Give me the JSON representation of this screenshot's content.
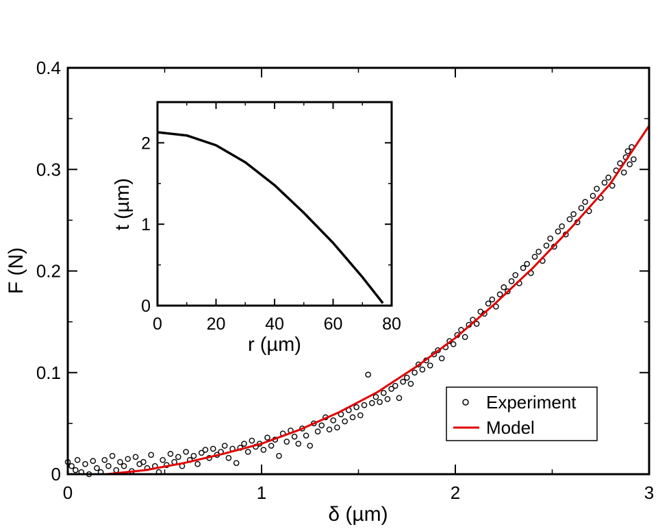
{
  "chart_data": [
    {
      "type": "scatter",
      "role": "main",
      "xlabel": "δ (µm)",
      "ylabel": "F (N)",
      "xlim": [
        0,
        3
      ],
      "ylim": [
        0,
        0.4
      ],
      "x_ticks": [
        0,
        1,
        2,
        3
      ],
      "x_tick_labels": [
        "0",
        "1",
        "2",
        "3"
      ],
      "y_ticks": [
        0,
        0.1,
        0.2,
        0.3,
        0.4
      ],
      "y_tick_labels": [
        "0",
        "0.1",
        "0.2",
        "0.3",
        "0.4"
      ],
      "legend": {
        "position": "bottom-right",
        "entries": [
          {
            "label": "Experiment",
            "marker": "open-circle",
            "color": "#000000"
          },
          {
            "label": "Model",
            "marker": "line",
            "color": "#e00000"
          }
        ]
      },
      "series": [
        {
          "name": "Experiment",
          "kind": "scatter",
          "color": "#000000",
          "points": [
            [
              0.0,
              0.012
            ],
            [
              0.02,
              0.008
            ],
            [
              0.04,
              0.004
            ],
            [
              0.05,
              0.014
            ],
            [
              0.07,
              0.002
            ],
            [
              0.09,
              0.01
            ],
            [
              0.11,
              0.0
            ],
            [
              0.13,
              0.013
            ],
            [
              0.15,
              0.006
            ],
            [
              0.17,
              0.002
            ],
            [
              0.19,
              0.014
            ],
            [
              0.21,
              0.008
            ],
            [
              0.23,
              0.018
            ],
            [
              0.25,
              0.004
            ],
            [
              0.27,
              0.012
            ],
            [
              0.29,
              0.008
            ],
            [
              0.31,
              0.015
            ],
            [
              0.33,
              0.003
            ],
            [
              0.35,
              0.017
            ],
            [
              0.37,
              0.01
            ],
            [
              0.39,
              0.012
            ],
            [
              0.41,
              0.006
            ],
            [
              0.43,
              0.019
            ],
            [
              0.45,
              0.008
            ],
            [
              0.47,
              0.002
            ],
            [
              0.49,
              0.014
            ],
            [
              0.51,
              0.009
            ],
            [
              0.53,
              0.02
            ],
            [
              0.55,
              0.012
            ],
            [
              0.57,
              0.017
            ],
            [
              0.59,
              0.008
            ],
            [
              0.61,
              0.022
            ],
            [
              0.63,
              0.014
            ],
            [
              0.65,
              0.018
            ],
            [
              0.67,
              0.01
            ],
            [
              0.69,
              0.021
            ],
            [
              0.71,
              0.024
            ],
            [
              0.73,
              0.016
            ],
            [
              0.75,
              0.025
            ],
            [
              0.77,
              0.019
            ],
            [
              0.79,
              0.022
            ],
            [
              0.81,
              0.028
            ],
            [
              0.83,
              0.016
            ],
            [
              0.85,
              0.025
            ],
            [
              0.87,
              0.011
            ],
            [
              0.89,
              0.026
            ],
            [
              0.91,
              0.03
            ],
            [
              0.93,
              0.022
            ],
            [
              0.95,
              0.033
            ],
            [
              0.97,
              0.027
            ],
            [
              0.99,
              0.03
            ],
            [
              1.01,
              0.024
            ],
            [
              1.03,
              0.036
            ],
            [
              1.05,
              0.028
            ],
            [
              1.07,
              0.034
            ],
            [
              1.09,
              0.018
            ],
            [
              1.11,
              0.04
            ],
            [
              1.13,
              0.032
            ],
            [
              1.15,
              0.043
            ],
            [
              1.17,
              0.037
            ],
            [
              1.19,
              0.03
            ],
            [
              1.21,
              0.045
            ],
            [
              1.23,
              0.038
            ],
            [
              1.25,
              0.028
            ],
            [
              1.27,
              0.05
            ],
            [
              1.29,
              0.042
            ],
            [
              1.31,
              0.048
            ],
            [
              1.33,
              0.056
            ],
            [
              1.35,
              0.044
            ],
            [
              1.37,
              0.053
            ],
            [
              1.39,
              0.046
            ],
            [
              1.41,
              0.059
            ],
            [
              1.43,
              0.052
            ],
            [
              1.45,
              0.063
            ],
            [
              1.47,
              0.056
            ],
            [
              1.49,
              0.066
            ],
            [
              1.51,
              0.058
            ],
            [
              1.53,
              0.068
            ],
            [
              1.55,
              0.098
            ],
            [
              1.57,
              0.07
            ],
            [
              1.59,
              0.076
            ],
            [
              1.61,
              0.071
            ],
            [
              1.63,
              0.08
            ],
            [
              1.65,
              0.074
            ],
            [
              1.67,
              0.084
            ],
            [
              1.69,
              0.087
            ],
            [
              1.71,
              0.075
            ],
            [
              1.73,
              0.091
            ],
            [
              1.75,
              0.095
            ],
            [
              1.77,
              0.089
            ],
            [
              1.79,
              0.1
            ],
            [
              1.81,
              0.108
            ],
            [
              1.83,
              0.103
            ],
            [
              1.85,
              0.112
            ],
            [
              1.87,
              0.107
            ],
            [
              1.89,
              0.118
            ],
            [
              1.91,
              0.122
            ],
            [
              1.93,
              0.114
            ],
            [
              1.95,
              0.125
            ],
            [
              1.97,
              0.131
            ],
            [
              1.99,
              0.128
            ],
            [
              2.01,
              0.137
            ],
            [
              2.03,
              0.142
            ],
            [
              2.05,
              0.135
            ],
            [
              2.07,
              0.147
            ],
            [
              2.09,
              0.152
            ],
            [
              2.11,
              0.148
            ],
            [
              2.13,
              0.16
            ],
            [
              2.15,
              0.158
            ],
            [
              2.17,
              0.168
            ],
            [
              2.19,
              0.172
            ],
            [
              2.21,
              0.165
            ],
            [
              2.23,
              0.177
            ],
            [
              2.25,
              0.184
            ],
            [
              2.27,
              0.18
            ],
            [
              2.29,
              0.19
            ],
            [
              2.31,
              0.196
            ],
            [
              2.33,
              0.188
            ],
            [
              2.35,
              0.203
            ],
            [
              2.37,
              0.207
            ],
            [
              2.39,
              0.198
            ],
            [
              2.41,
              0.214
            ],
            [
              2.43,
              0.219
            ],
            [
              2.45,
              0.21
            ],
            [
              2.47,
              0.225
            ],
            [
              2.49,
              0.232
            ],
            [
              2.51,
              0.224
            ],
            [
              2.53,
              0.239
            ],
            [
              2.55,
              0.244
            ],
            [
              2.57,
              0.236
            ],
            [
              2.59,
              0.251
            ],
            [
              2.61,
              0.256
            ],
            [
              2.63,
              0.248
            ],
            [
              2.65,
              0.262
            ],
            [
              2.67,
              0.268
            ],
            [
              2.69,
              0.259
            ],
            [
              2.71,
              0.274
            ],
            [
              2.73,
              0.281
            ],
            [
              2.75,
              0.272
            ],
            [
              2.77,
              0.287
            ],
            [
              2.79,
              0.292
            ],
            [
              2.81,
              0.284
            ],
            [
              2.83,
              0.299
            ],
            [
              2.85,
              0.306
            ],
            [
              2.87,
              0.297
            ],
            [
              2.88,
              0.312
            ],
            [
              2.89,
              0.318
            ],
            [
              2.9,
              0.305
            ],
            [
              2.91,
              0.322
            ],
            [
              2.92,
              0.31
            ]
          ]
        },
        {
          "name": "Model",
          "kind": "line",
          "color": "#e00000",
          "x": [
            0.2,
            0.4,
            0.6,
            0.8,
            1.0,
            1.2,
            1.4,
            1.6,
            1.8,
            2.0,
            2.2,
            2.4,
            2.6,
            2.8,
            3.0
          ],
          "y": [
            0.0,
            0.004,
            0.011,
            0.02,
            0.03,
            0.044,
            0.061,
            0.081,
            0.106,
            0.134,
            0.167,
            0.203,
            0.243,
            0.286,
            0.343
          ]
        }
      ]
    },
    {
      "type": "line",
      "role": "inset",
      "xlabel": "r (µm)",
      "ylabel": "t (µm)",
      "xlim": [
        0,
        80
      ],
      "ylim": [
        0,
        2.5
      ],
      "x_ticks": [
        0,
        20,
        40,
        60,
        80
      ],
      "x_tick_labels": [
        "0",
        "20",
        "40",
        "60",
        "80"
      ],
      "y_ticks": [
        0,
        1,
        2
      ],
      "y_tick_labels": [
        "0",
        "1",
        "2"
      ],
      "series": [
        {
          "name": "profile",
          "color": "#000000",
          "x": [
            0,
            10,
            20,
            30,
            40,
            50,
            60,
            70,
            77
          ],
          "y": [
            2.13,
            2.09,
            1.97,
            1.76,
            1.48,
            1.14,
            0.77,
            0.35,
            0.03
          ]
        }
      ]
    }
  ]
}
